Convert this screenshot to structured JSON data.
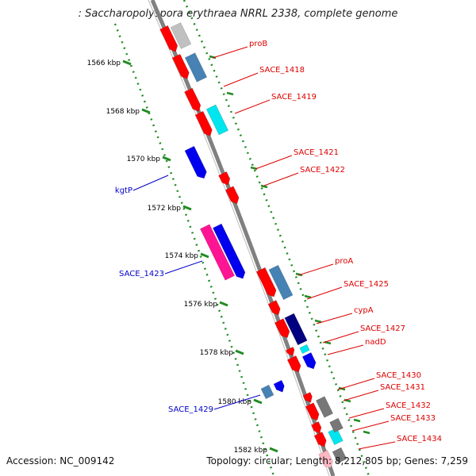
{
  "title": ": Saccharopolyspora erythraea NRRL 2338, complete genome",
  "footer": {
    "accession": "Accession: NC_009142",
    "topology": "Topology: circular; Length: 8,212,805 bp; Genes: 7,259"
  },
  "colors": {
    "red": "#ff0000",
    "blue": "#0000ee",
    "steel_blue": "#4682b4",
    "cyan": "#00e5ee",
    "navy": "#000080",
    "magenta": "#ff1493",
    "gray": "#777777",
    "light_gray": "#c0c0c0",
    "pink": "#ffb6c1",
    "ruler_green": "#228b22",
    "label_red": "#dd0000",
    "label_blue": "#0000cc",
    "backbone": "#808080"
  },
  "ruler_ticks": [
    {
      "label": "1566 kbp"
    },
    {
      "label": "1568 kbp"
    },
    {
      "label": "1570 kbp"
    },
    {
      "label": "1572 kbp"
    },
    {
      "label": "1574 kbp"
    },
    {
      "label": "1576 kbp"
    },
    {
      "label": "1578 kbp"
    },
    {
      "label": "1580 kbp"
    },
    {
      "label": "1582 kbp"
    }
  ],
  "right_labels": [
    {
      "name": "proB"
    },
    {
      "name": "SACE_1418"
    },
    {
      "name": "SACE_1419"
    },
    {
      "name": "SACE_1421"
    },
    {
      "name": "SACE_1422"
    },
    {
      "name": "proA"
    },
    {
      "name": "SACE_1425"
    },
    {
      "name": "cypA"
    },
    {
      "name": "SACE_1427"
    },
    {
      "name": "nadD"
    },
    {
      "name": "SACE_1430"
    },
    {
      "name": "SACE_1431"
    },
    {
      "name": "SACE_1432"
    },
    {
      "name": "SACE_1433"
    },
    {
      "name": "SACE_1434"
    }
  ],
  "left_labels": [
    {
      "name": "kgtP"
    },
    {
      "name": "SACE_1423"
    },
    {
      "name": "SACE_1429"
    }
  ]
}
